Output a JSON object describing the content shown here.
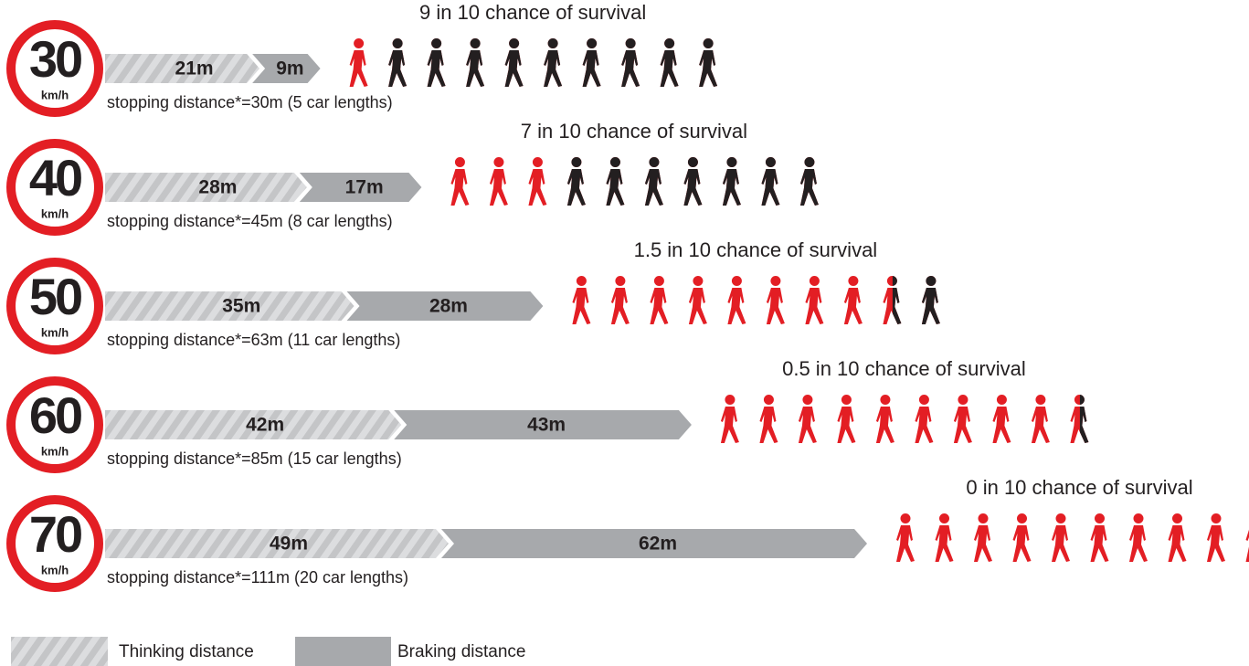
{
  "chart_data": {
    "type": "bar",
    "orientation": "horizontal",
    "stacked": true,
    "categories": [
      "30",
      "40",
      "50",
      "60",
      "70"
    ],
    "unit": "km/h",
    "xlim": [
      0,
      111
    ],
    "series": [
      {
        "name": "Thinking distance",
        "color": "#c9cacc",
        "pattern": "hatch",
        "values": [
          21,
          28,
          35,
          42,
          49
        ],
        "value_labels": [
          "21m",
          "28m",
          "35m",
          "42m",
          "49m"
        ]
      },
      {
        "name": "Braking distance",
        "color": "#a7a9ac",
        "values": [
          9,
          17,
          28,
          43,
          62
        ],
        "value_labels": [
          "9m",
          "17m",
          "28m",
          "43m",
          "62m"
        ]
      }
    ],
    "annotations": [
      "stopping distance*=30m (5 car lengths)",
      "stopping distance*=45m (8 car lengths)",
      "stopping distance*=63m (11 car lengths)",
      "stopping distance*=85m (15 car lengths)",
      "stopping distance*=111m (20 car lengths)"
    ],
    "survival": {
      "out_of": 10,
      "labels": [
        "9 in 10 chance of survival",
        "7 in 10 chance of survival",
        "1.5 in 10 chance of survival",
        "0.5 in 10 chance of survival",
        "0 in 10 chance of survival"
      ],
      "values": [
        9,
        7,
        1.5,
        0.5,
        0
      ],
      "colors": {
        "survive": "#231f20",
        "die": "#e31e24"
      }
    }
  }
}
